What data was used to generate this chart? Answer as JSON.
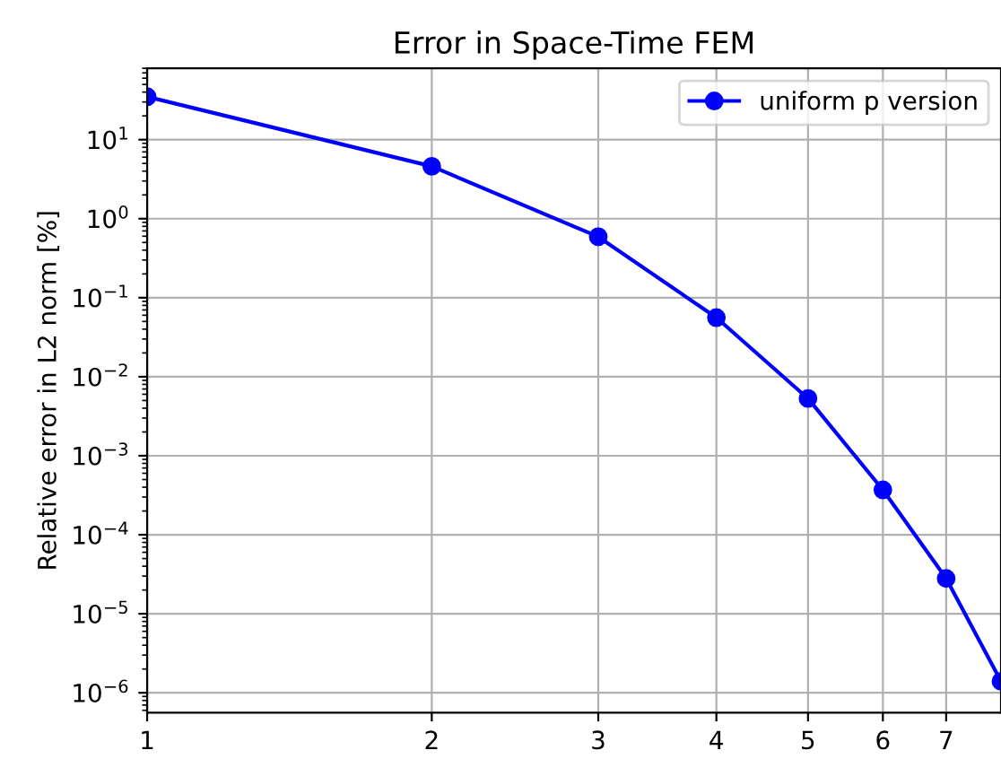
{
  "chart_data": {
    "type": "line",
    "title": "Error in Space-Time FEM",
    "ylabel": "Relative error in L2 norm [%]",
    "x": [
      1,
      2,
      3,
      4,
      5,
      6,
      7,
      8
    ],
    "series": [
      {
        "name": "uniform p version",
        "color": "#0000ff",
        "values": [
          35,
          4.6,
          0.59,
          0.056,
          0.0053,
          0.00037,
          2.8e-05,
          1.4e-06
        ]
      }
    ],
    "log": "xy",
    "xlim": [
      1,
      8
    ],
    "ylim": [
      5.6e-07,
      80
    ],
    "xticks": [
      1,
      2,
      3,
      4,
      5,
      6,
      7
    ],
    "yticks": [
      {
        "value": 10,
        "label": "10$^{1}$"
      },
      {
        "value": 1,
        "label": "10$^{0}$"
      },
      {
        "value": 0.1,
        "label": "10$^{−1}$"
      },
      {
        "value": 0.01,
        "label": "10$^{−2}$"
      },
      {
        "value": 0.001,
        "label": "10$^{−3}$"
      },
      {
        "value": 0.0001,
        "label": "10$^{−4}$"
      },
      {
        "value": 1e-05,
        "label": "10$^{−5}$"
      },
      {
        "value": 1e-06,
        "label": "10$^{−6}$"
      }
    ],
    "grid": true,
    "legend": "top right",
    "marker": "circle",
    "line_style": "solid"
  }
}
